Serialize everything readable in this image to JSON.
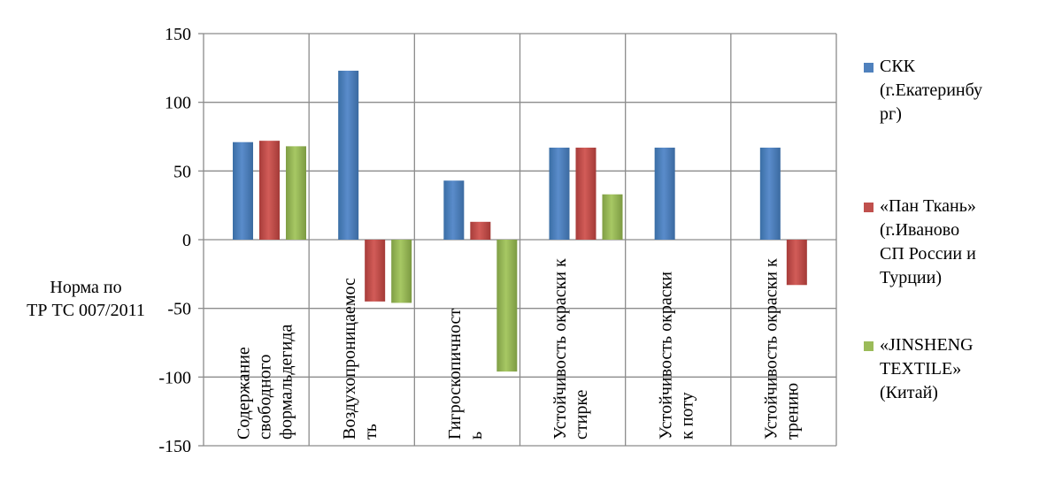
{
  "chart_data": {
    "type": "bar",
    "categories": [
      [
        "Содержание",
        "свободного",
        "формальдегида"
      ],
      [
        "Воздухопроницаемос",
        "ть"
      ],
      [
        "Гигроскопичност",
        "ь"
      ],
      [
        "Устойчивость окраски к",
        "стирке"
      ],
      [
        "Устойчивость окраски",
        "к поту"
      ],
      [
        "Устойчивость окраски к",
        "трению"
      ]
    ],
    "series": [
      {
        "name": "СКК (г.Екатеринбург)",
        "color": "#4f81bd",
        "values": [
          71,
          123,
          43,
          67,
          67,
          67
        ]
      },
      {
        "name": "«Пан Ткань» (г.Иваново СП России и Турции)",
        "color": "#c0504d",
        "values": [
          72,
          -45,
          13,
          67,
          0,
          -33
        ]
      },
      {
        "name": "«JINSHENG TEXTILE» (Китай)",
        "color": "#9bbb59",
        "values": [
          68,
          -46,
          -96,
          33,
          0,
          0
        ]
      }
    ],
    "ylim": [
      -150,
      150
    ],
    "yticks": [
      "150",
      "100",
      "50",
      "0",
      "-50",
      "-100",
      "-150"
    ],
    "ylabel_lines": [
      "Норма по",
      "ТР ТС 007/2011"
    ],
    "legend_position": "right",
    "grid": true
  },
  "legend": [
    {
      "color": "#4f81bd",
      "lines": [
        "СКК",
        "(г.Екатеринбу",
        "рг)"
      ]
    },
    {
      "color": "#c0504d",
      "lines": [
        "«Пан Ткань»",
        "(г.Иваново",
        "СП России и",
        "Турции)"
      ]
    },
    {
      "color": "#9bbb59",
      "lines": [
        "«JINSHENG",
        "TEXTILE»",
        "(Китай)"
      ]
    }
  ]
}
